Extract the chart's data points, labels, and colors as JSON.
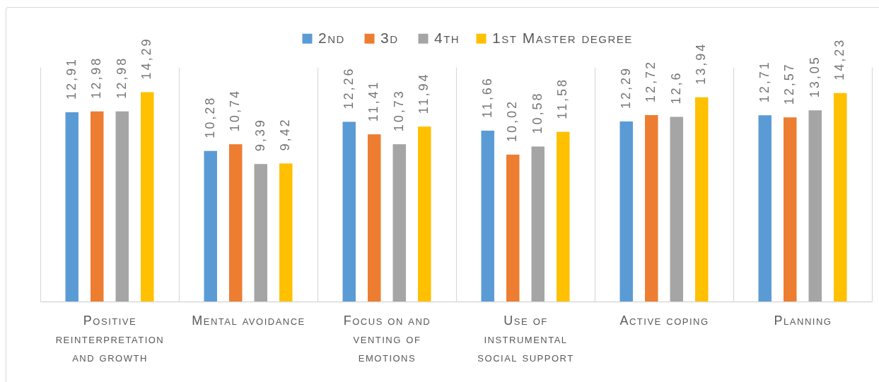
{
  "chart_data": {
    "type": "bar",
    "categories": [
      "Positive reinterpretation and growth",
      "Mental avoidance",
      "Focus on and venting of emotions",
      "Use of instrumental social support",
      "Active coping",
      "Planning"
    ],
    "series": [
      {
        "name": "2nd",
        "color": "#5b9bd5",
        "values": [
          12.91,
          10.28,
          12.26,
          11.66,
          12.29,
          12.71
        ],
        "value_labels": [
          "12,91",
          "10,28",
          "12,26",
          "11,66",
          "12,29",
          "12,71"
        ]
      },
      {
        "name": "3d",
        "color": "#ed7d31",
        "values": [
          12.98,
          10.74,
          11.41,
          10.02,
          12.72,
          12.57
        ],
        "value_labels": [
          "12,98",
          "10,74",
          "11,41",
          "10,02",
          "12,72",
          "12,57"
        ]
      },
      {
        "name": "4th",
        "color": "#a5a5a5",
        "values": [
          12.98,
          9.39,
          10.73,
          10.58,
          12.6,
          13.05
        ],
        "value_labels": [
          "12,98",
          "9,39",
          "10,73",
          "10,58",
          "12,6",
          "13,05"
        ]
      },
      {
        "name": "1st Master degree",
        "color": "#ffc000",
        "values": [
          14.29,
          9.42,
          11.94,
          11.58,
          13.94,
          14.23
        ],
        "value_labels": [
          "14,29",
          "9,42",
          "11,94",
          "11,58",
          "13,94",
          "14,23"
        ]
      }
    ],
    "grid": "x",
    "legend": "top",
    "tick_labels": "x"
  }
}
